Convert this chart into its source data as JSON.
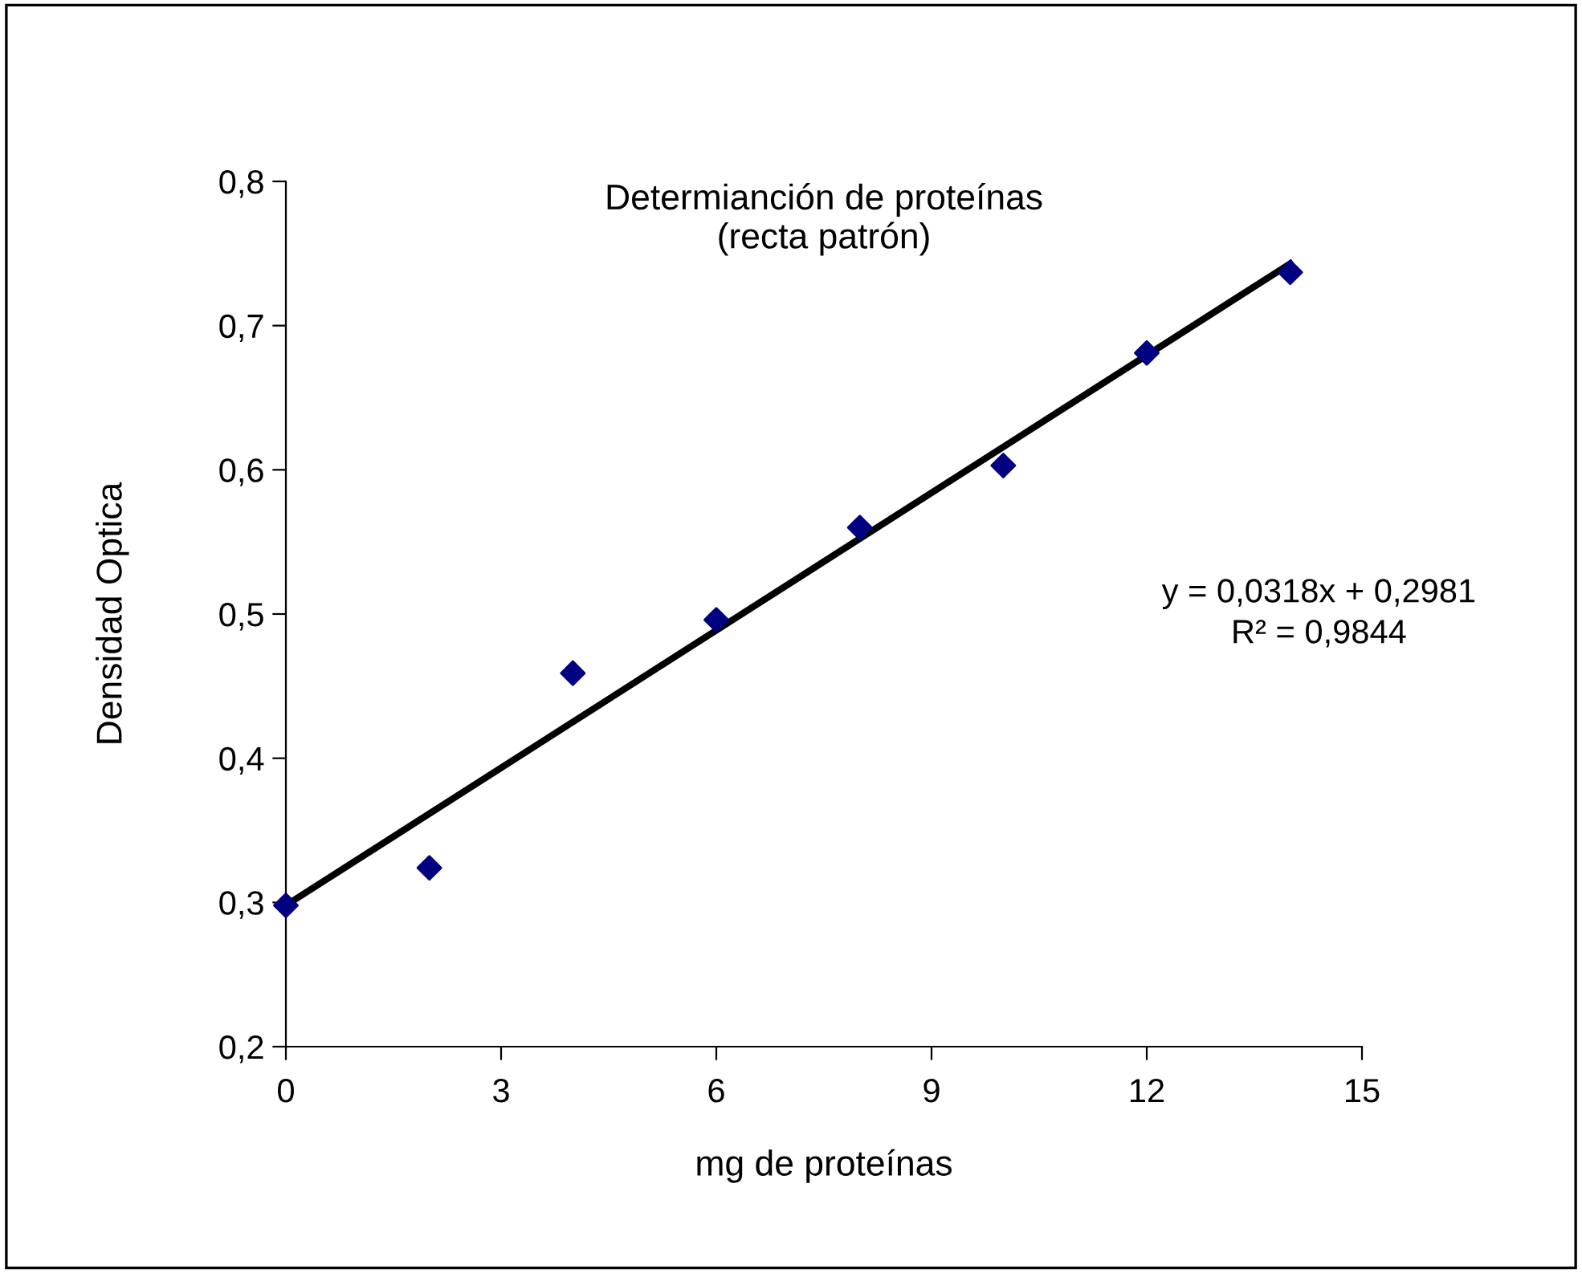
{
  "chart_data": {
    "type": "scatter",
    "title": "Determianción de proteínas\n(recta patrón)",
    "xlabel": "mg de proteínas",
    "ylabel": "Densidad Optica",
    "series": [
      {
        "color": "#000080",
        "marker": "diamond",
        "x": [
          0,
          2,
          4,
          6,
          8,
          10,
          12,
          14
        ],
        "values": [
          0.298,
          0.324,
          0.459,
          0.496,
          0.56,
          0.603,
          0.681,
          0.737
        ]
      },
      {
        "type": "line",
        "color": "#000000",
        "marker": "none",
        "line_style": "solid",
        "x": [
          0,
          14
        ],
        "values": [
          0.298,
          0.743
        ]
      }
    ],
    "annotations": [
      "y = 0,0318x + 0,2981\nR² = 0,9844"
    ],
    "xlim": [
      0,
      15
    ],
    "xticks": [
      0,
      3,
      6,
      9,
      12,
      15
    ],
    "ylim": [
      0.2,
      0.8
    ],
    "yticks": [
      {
        "value": 0.2,
        "label": "0,2"
      },
      {
        "value": 0.3,
        "label": "0,3"
      },
      {
        "value": 0.4,
        "label": "0,4"
      },
      {
        "value": 0.5,
        "label": "0,5"
      },
      {
        "value": 0.6,
        "label": "0,6"
      },
      {
        "value": 0.7,
        "label": "0,7"
      },
      {
        "value": 0.8,
        "label": "0,8"
      }
    ],
    "grid": false,
    "legend": false
  }
}
